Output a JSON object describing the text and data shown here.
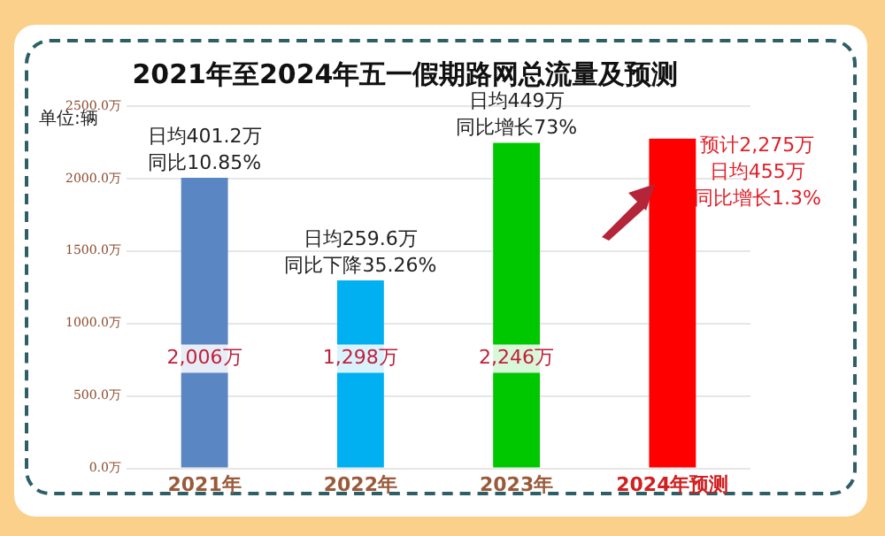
{
  "chart_data": {
    "type": "bar",
    "title": "2021年至2024年五一假期路网总流量及预测",
    "categories": [
      "2021年",
      "2022年",
      "2023年",
      "2024年预测"
    ],
    "values": [
      2006,
      1298,
      2246,
      2275
    ],
    "colors": [
      "#5a86c4",
      "#00b0f0",
      "#00c800",
      "#ff0000"
    ],
    "value_labels": [
      "2,006万",
      "1,298万",
      "2,246万",
      null
    ],
    "ylim": [
      0,
      2500
    ],
    "yticks": [
      {
        "value": 0,
        "label": "0.0万"
      },
      {
        "value": 500,
        "label": "500.0万"
      },
      {
        "value": 1000,
        "label": "1000.0万"
      },
      {
        "value": 1500,
        "label": "1500.0万"
      },
      {
        "value": 2000,
        "label": "2000.0万"
      },
      {
        "value": 2500,
        "label": "2500.0万"
      }
    ],
    "grid": "y",
    "legend": false,
    "annotations": [
      "单位:辆",
      "日均401.2万",
      "同比10.85%",
      "日均259.6万",
      "同比下降35.26%",
      "日均449万",
      "同比增长73%",
      "预计2,275万",
      "日均455万",
      "同比增长1.3%"
    ]
  }
}
